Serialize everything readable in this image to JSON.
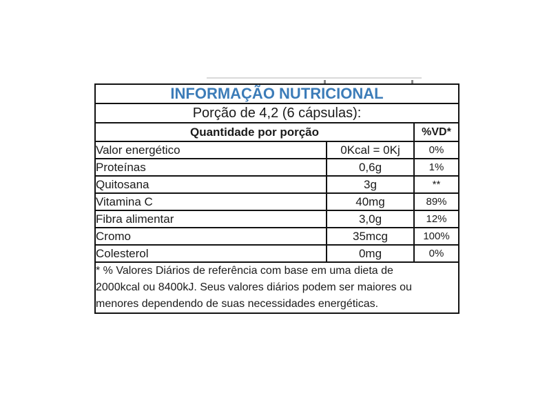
{
  "page": {
    "background": "#ffffff"
  },
  "colors": {
    "title_blue": "#3c7cb8",
    "border_black": "#111111",
    "text_black": "#1a1a1a"
  },
  "table": {
    "title": "INFORMAÇÃO NUTRICIONAL",
    "serving": "Porção de 4,2 (6 cápsulas):",
    "header": {
      "quantity": "Quantidade por porção",
      "dv": "%VD*"
    },
    "rows": [
      {
        "label": "Valor energético",
        "amount": "0Kcal = 0Kj",
        "dv": "0%"
      },
      {
        "label": "Proteínas",
        "amount": "0,6g",
        "dv": "1%"
      },
      {
        "label": "Quitosana",
        "amount": "3g",
        "dv": "**"
      },
      {
        "label": "Vitamina C",
        "amount": "40mg",
        "dv": "89%"
      },
      {
        "label": "Fibra alimentar",
        "amount": "3,0g",
        "dv": "12%"
      },
      {
        "label": "Cromo",
        "amount": "35mcg",
        "dv": "100%"
      },
      {
        "label": "Colesterol",
        "amount": "0mg",
        "dv": "0%"
      }
    ],
    "footnote_lines": [
      "* % Valores Diários de referência com base em uma dieta de",
      "2000kcal ou 8400kJ. Seus valores diários podem ser maiores ou",
      "menores dependendo de suas necessidades energéticas."
    ]
  }
}
